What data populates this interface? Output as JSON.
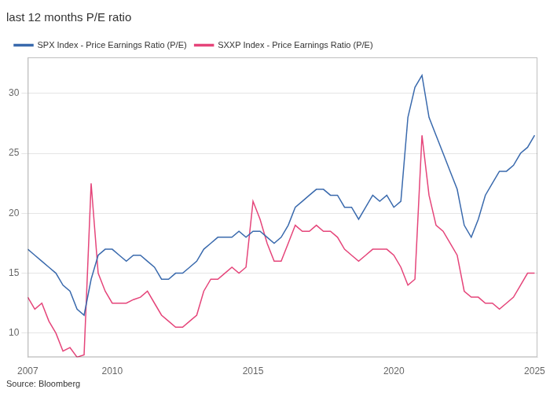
{
  "chart_data": {
    "type": "line",
    "title": "last 12 months P/E ratio",
    "annotations": [
      "Source: Bloomberg"
    ],
    "x": [
      2007.0,
      2007.25,
      2007.5,
      2007.75,
      2008.0,
      2008.25,
      2008.5,
      2008.75,
      2009.0,
      2009.25,
      2009.5,
      2009.75,
      2010.0,
      2010.25,
      2010.5,
      2010.75,
      2011.0,
      2011.25,
      2011.5,
      2011.75,
      2012.0,
      2012.25,
      2012.5,
      2012.75,
      2013.0,
      2013.25,
      2013.5,
      2013.75,
      2014.0,
      2014.25,
      2014.5,
      2014.75,
      2015.0,
      2015.25,
      2015.5,
      2015.75,
      2016.0,
      2016.25,
      2016.5,
      2016.75,
      2017.0,
      2017.25,
      2017.5,
      2017.75,
      2018.0,
      2018.25,
      2018.5,
      2018.75,
      2019.0,
      2019.25,
      2019.5,
      2019.75,
      2020.0,
      2020.25,
      2020.5,
      2020.75,
      2021.0,
      2021.25,
      2021.5,
      2021.75,
      2022.0,
      2022.25,
      2022.5,
      2022.75,
      2023.0,
      2023.25,
      2023.5,
      2023.75,
      2024.0,
      2024.25,
      2024.5,
      2024.75,
      2025.0
    ],
    "series": [
      {
        "name": "SPX Index - Price Earnings Ratio (P/E)",
        "color": "#3a6aad",
        "values": [
          17.0,
          16.5,
          16.0,
          15.5,
          15.0,
          14.0,
          13.5,
          12.0,
          11.5,
          14.5,
          16.5,
          17.0,
          17.0,
          16.5,
          16.0,
          16.5,
          16.5,
          16.0,
          15.5,
          14.5,
          14.5,
          15.0,
          15.0,
          15.5,
          16.0,
          17.0,
          17.5,
          18.0,
          18.0,
          18.0,
          18.5,
          18.0,
          18.5,
          18.5,
          18.0,
          17.5,
          18.0,
          19.0,
          20.5,
          21.0,
          21.5,
          22.0,
          22.0,
          21.5,
          21.5,
          20.5,
          20.5,
          19.5,
          20.5,
          21.5,
          21.0,
          21.5,
          20.5,
          21.0,
          28.0,
          30.5,
          31.5,
          28.0,
          26.5,
          25.0,
          23.5,
          22.0,
          19.0,
          18.0,
          19.5,
          21.5,
          22.5,
          23.5,
          23.5,
          24.0,
          25.0,
          25.5,
          26.5
        ]
      },
      {
        "name": "SXXP Index - Price Earnings Ratio (P/E)",
        "color": "#e5457a",
        "values": [
          13.0,
          12.0,
          12.5,
          11.0,
          10.0,
          8.5,
          8.8,
          8.0,
          8.2,
          22.5,
          15.0,
          13.5,
          12.5,
          12.5,
          12.5,
          12.8,
          13.0,
          13.5,
          12.5,
          11.5,
          11.0,
          10.5,
          10.5,
          11.0,
          11.5,
          13.5,
          14.5,
          14.5,
          15.0,
          15.5,
          15.0,
          15.5,
          21.0,
          19.5,
          17.5,
          16.0,
          16.0,
          17.5,
          19.0,
          18.5,
          18.5,
          19.0,
          18.5,
          18.5,
          18.0,
          17.0,
          16.5,
          16.0,
          16.5,
          17.0,
          17.0,
          17.0,
          16.5,
          15.5,
          14.0,
          14.5,
          26.5,
          21.5,
          19.0,
          18.5,
          17.5,
          16.5,
          13.5,
          13.0,
          13.0,
          12.5,
          12.5,
          12.0,
          12.5,
          13.0,
          14.0,
          15.0,
          15.0
        ]
      }
    ],
    "xlim": [
      2007,
      2025.1
    ],
    "xticks": [
      2007,
      2010,
      2015,
      2020,
      2025
    ],
    "ylim": [
      8,
      33
    ],
    "yticks": [
      10,
      15,
      20,
      25,
      30
    ],
    "grid": "y",
    "legend": "top"
  }
}
